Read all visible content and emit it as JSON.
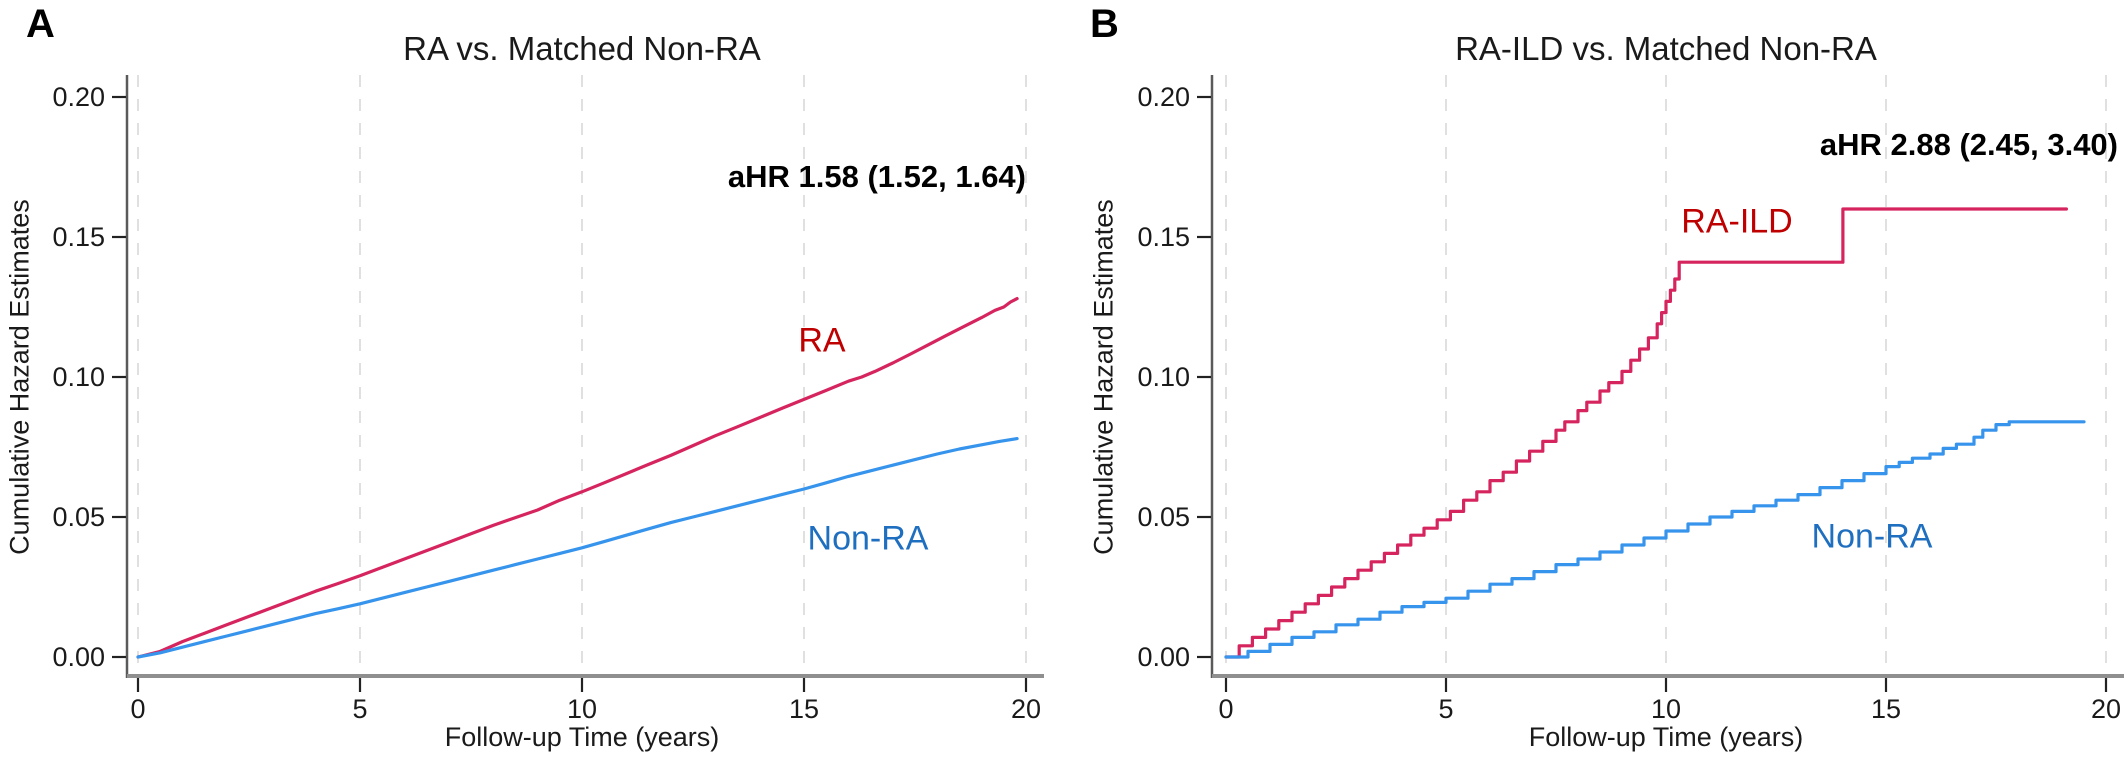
{
  "colors": {
    "red_line": "#d6245f",
    "blue_line": "#3794ec",
    "red_label": "#bf0000",
    "blue_label": "#1f6fc0",
    "text": "#1a1a1a",
    "grid": "#e0e0e0",
    "axis_line": "#5a5a5a",
    "baseline": "#8f8f8f",
    "tick": "#222222"
  },
  "chart_data": [
    {
      "panel": "a",
      "letter": "A",
      "type": "line",
      "title": "RA vs. Matched Non-RA",
      "annotation": "aHR 1.58 (1.52, 1.64)",
      "xlabel": "Follow-up Time (years)",
      "ylabel": "Cumulative Hazard Estimates",
      "xlim": [
        0,
        20
      ],
      "ylim": [
        0,
        0.2
      ],
      "xticks": [
        0,
        5,
        10,
        15,
        20
      ],
      "yticks": [
        0,
        0.05,
        0.1,
        0.15,
        0.2
      ],
      "ytick_labels": [
        "0.00",
        "0.05",
        "0.10",
        "0.15",
        "0.20"
      ],
      "grid": "vertical-dashed",
      "legend_position": "inline-labels",
      "series": [
        {
          "name": "RA",
          "role": "red",
          "mode": "line",
          "points": [
            [
              0,
              0
            ],
            [
              0.5,
              0.002
            ],
            [
              1,
              0.0055
            ],
            [
              1.5,
              0.0085
            ],
            [
              2,
              0.0115
            ],
            [
              2.5,
              0.0145
            ],
            [
              3,
              0.0175
            ],
            [
              3.5,
              0.0205
            ],
            [
              4,
              0.0235
            ],
            [
              4.5,
              0.0262
            ],
            [
              5,
              0.029
            ],
            [
              5.5,
              0.032
            ],
            [
              6,
              0.035
            ],
            [
              6.5,
              0.038
            ],
            [
              7,
              0.041
            ],
            [
              7.5,
              0.044
            ],
            [
              8,
              0.047
            ],
            [
              8.5,
              0.0498
            ],
            [
              9,
              0.0525
            ],
            [
              9.5,
              0.056
            ],
            [
              10,
              0.059
            ],
            [
              10.5,
              0.0622
            ],
            [
              11,
              0.0655
            ],
            [
              11.5,
              0.0688
            ],
            [
              12,
              0.072
            ],
            [
              12.5,
              0.0755
            ],
            [
              13,
              0.079
            ],
            [
              13.5,
              0.0822
            ],
            [
              14,
              0.0855
            ],
            [
              14.5,
              0.0888
            ],
            [
              15,
              0.092
            ],
            [
              15.5,
              0.0952
            ],
            [
              16,
              0.0985
            ],
            [
              16.3,
              0.1
            ],
            [
              16.6,
              0.102
            ],
            [
              17,
              0.105
            ],
            [
              17.4,
              0.1082
            ],
            [
              17.8,
              0.1115
            ],
            [
              18.2,
              0.1148
            ],
            [
              18.6,
              0.118
            ],
            [
              19,
              0.1212
            ],
            [
              19.3,
              0.1238
            ],
            [
              19.5,
              0.125
            ],
            [
              19.65,
              0.1268
            ],
            [
              19.8,
              0.128
            ]
          ]
        },
        {
          "name": "Non-RA",
          "role": "blue",
          "mode": "line",
          "points": [
            [
              0,
              0
            ],
            [
              0.5,
              0.0015
            ],
            [
              1,
              0.0035
            ],
            [
              1.5,
              0.0055
            ],
            [
              2,
              0.0075
            ],
            [
              2.5,
              0.0095
            ],
            [
              3,
              0.0115
            ],
            [
              3.5,
              0.0135
            ],
            [
              4,
              0.0155
            ],
            [
              4.5,
              0.0172
            ],
            [
              5,
              0.019
            ],
            [
              5.5,
              0.021
            ],
            [
              6,
              0.023
            ],
            [
              6.5,
              0.025
            ],
            [
              7,
              0.027
            ],
            [
              7.5,
              0.029
            ],
            [
              8,
              0.031
            ],
            [
              8.5,
              0.033
            ],
            [
              9,
              0.035
            ],
            [
              9.5,
              0.037
            ],
            [
              10,
              0.039
            ],
            [
              10.5,
              0.0412
            ],
            [
              11,
              0.0435
            ],
            [
              11.5,
              0.0458
            ],
            [
              12,
              0.048
            ],
            [
              12.5,
              0.05
            ],
            [
              13,
              0.052
            ],
            [
              13.5,
              0.054
            ],
            [
              14,
              0.056
            ],
            [
              14.5,
              0.058
            ],
            [
              15,
              0.06
            ],
            [
              15.5,
              0.0622
            ],
            [
              16,
              0.0645
            ],
            [
              16.5,
              0.0665
            ],
            [
              17,
              0.0685
            ],
            [
              17.5,
              0.0705
            ],
            [
              18,
              0.0725
            ],
            [
              18.5,
              0.0743
            ],
            [
              19,
              0.0758
            ],
            [
              19.4,
              0.077
            ],
            [
              19.8,
              0.078
            ]
          ]
        }
      ]
    },
    {
      "panel": "b",
      "letter": "B",
      "type": "line",
      "title": "RA-ILD vs. Matched Non-RA",
      "annotation": "aHR 2.88 (2.45, 3.40)",
      "xlabel": "Follow-up Time (years)",
      "ylabel": "Cumulative Hazard Estimates",
      "xlim": [
        0,
        20
      ],
      "ylim": [
        0,
        0.2
      ],
      "xticks": [
        0,
        5,
        10,
        15,
        20
      ],
      "yticks": [
        0,
        0.05,
        0.1,
        0.15,
        0.2
      ],
      "ytick_labels": [
        "0.00",
        "0.05",
        "0.10",
        "0.15",
        "0.20"
      ],
      "grid": "vertical-dashed",
      "legend_position": "inline-labels",
      "series": [
        {
          "name": "RA-ILD",
          "role": "red",
          "mode": "step",
          "points": [
            [
              0,
              0
            ],
            [
              0.3,
              0.004
            ],
            [
              0.6,
              0.007
            ],
            [
              0.9,
              0.01
            ],
            [
              1.2,
              0.013
            ],
            [
              1.5,
              0.016
            ],
            [
              1.8,
              0.019
            ],
            [
              2.1,
              0.022
            ],
            [
              2.4,
              0.025
            ],
            [
              2.7,
              0.028
            ],
            [
              3,
              0.031
            ],
            [
              3.3,
              0.034
            ],
            [
              3.6,
              0.037
            ],
            [
              3.9,
              0.04
            ],
            [
              4.2,
              0.0435
            ],
            [
              4.5,
              0.046
            ],
            [
              4.8,
              0.049
            ],
            [
              5.1,
              0.052
            ],
            [
              5.4,
              0.056
            ],
            [
              5.7,
              0.059
            ],
            [
              6,
              0.063
            ],
            [
              6.3,
              0.066
            ],
            [
              6.6,
              0.07
            ],
            [
              6.9,
              0.0735
            ],
            [
              7.2,
              0.077
            ],
            [
              7.5,
              0.081
            ],
            [
              7.7,
              0.084
            ],
            [
              8,
              0.088
            ],
            [
              8.2,
              0.091
            ],
            [
              8.5,
              0.095
            ],
            [
              8.7,
              0.098
            ],
            [
              9,
              0.102
            ],
            [
              9.2,
              0.106
            ],
            [
              9.4,
              0.11
            ],
            [
              9.6,
              0.114
            ],
            [
              9.8,
              0.119
            ],
            [
              9.9,
              0.123
            ],
            [
              10,
              0.127
            ],
            [
              10.1,
              0.131
            ],
            [
              10.2,
              0.135
            ],
            [
              10.3,
              0.141
            ],
            [
              14,
              0.141
            ],
            [
              14.02,
              0.16
            ],
            [
              19.1,
              0.16
            ]
          ]
        },
        {
          "name": "Non-RA",
          "role": "blue",
          "mode": "step",
          "points": [
            [
              0,
              0
            ],
            [
              0.5,
              0.002
            ],
            [
              1,
              0.0045
            ],
            [
              1.5,
              0.007
            ],
            [
              2,
              0.009
            ],
            [
              2.5,
              0.0115
            ],
            [
              3,
              0.0135
            ],
            [
              3.5,
              0.016
            ],
            [
              4,
              0.018
            ],
            [
              4.5,
              0.0195
            ],
            [
              5,
              0.021
            ],
            [
              5.5,
              0.0235
            ],
            [
              6,
              0.026
            ],
            [
              6.5,
              0.028
            ],
            [
              7,
              0.0305
            ],
            [
              7.5,
              0.033
            ],
            [
              8,
              0.035
            ],
            [
              8.5,
              0.0375
            ],
            [
              9,
              0.04
            ],
            [
              9.5,
              0.0425
            ],
            [
              10,
              0.045
            ],
            [
              10.5,
              0.0475
            ],
            [
              11,
              0.05
            ],
            [
              11.5,
              0.052
            ],
            [
              12,
              0.054
            ],
            [
              12.5,
              0.056
            ],
            [
              13,
              0.058
            ],
            [
              13.5,
              0.0605
            ],
            [
              14,
              0.063
            ],
            [
              14.5,
              0.0655
            ],
            [
              15,
              0.068
            ],
            [
              15.3,
              0.0695
            ],
            [
              15.6,
              0.071
            ],
            [
              16,
              0.0725
            ],
            [
              16.3,
              0.0745
            ],
            [
              16.6,
              0.076
            ],
            [
              17,
              0.0785
            ],
            [
              17.2,
              0.081
            ],
            [
              17.5,
              0.083
            ],
            [
              17.8,
              0.084
            ],
            [
              19.5,
              0.084
            ]
          ]
        }
      ]
    }
  ]
}
